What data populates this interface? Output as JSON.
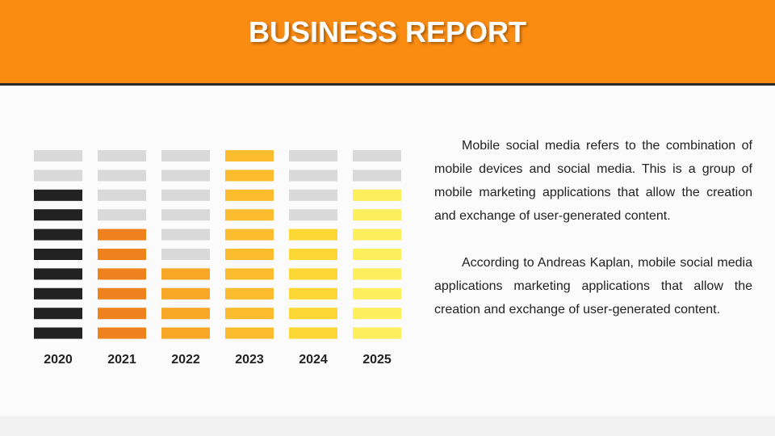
{
  "header": {
    "title": "BUSINESS REPORT"
  },
  "text": {
    "paragraphs": [
      "Mobile social media refers to the combination of mobile devices and social media. This is a group of mobile marketing applications that allow the creation and exchange of user-generated content.",
      "According to Andreas Kaplan, mobile social media applications marketing applications that allow the creation and exchange of user-generated content."
    ]
  },
  "chart_data": {
    "type": "pictogram",
    "categories": [
      "2020",
      "2021",
      "2022",
      "2023",
      "2024",
      "2025"
    ],
    "values": [
      8,
      6,
      4,
      10,
      6,
      8
    ],
    "colors": [
      "#222222",
      "#f0821e",
      "#f7a626",
      "#fbbd2e",
      "#fdd835",
      "#fdef5c"
    ],
    "empty_color": "#d9d9d9",
    "ylim": [
      0,
      10
    ]
  }
}
